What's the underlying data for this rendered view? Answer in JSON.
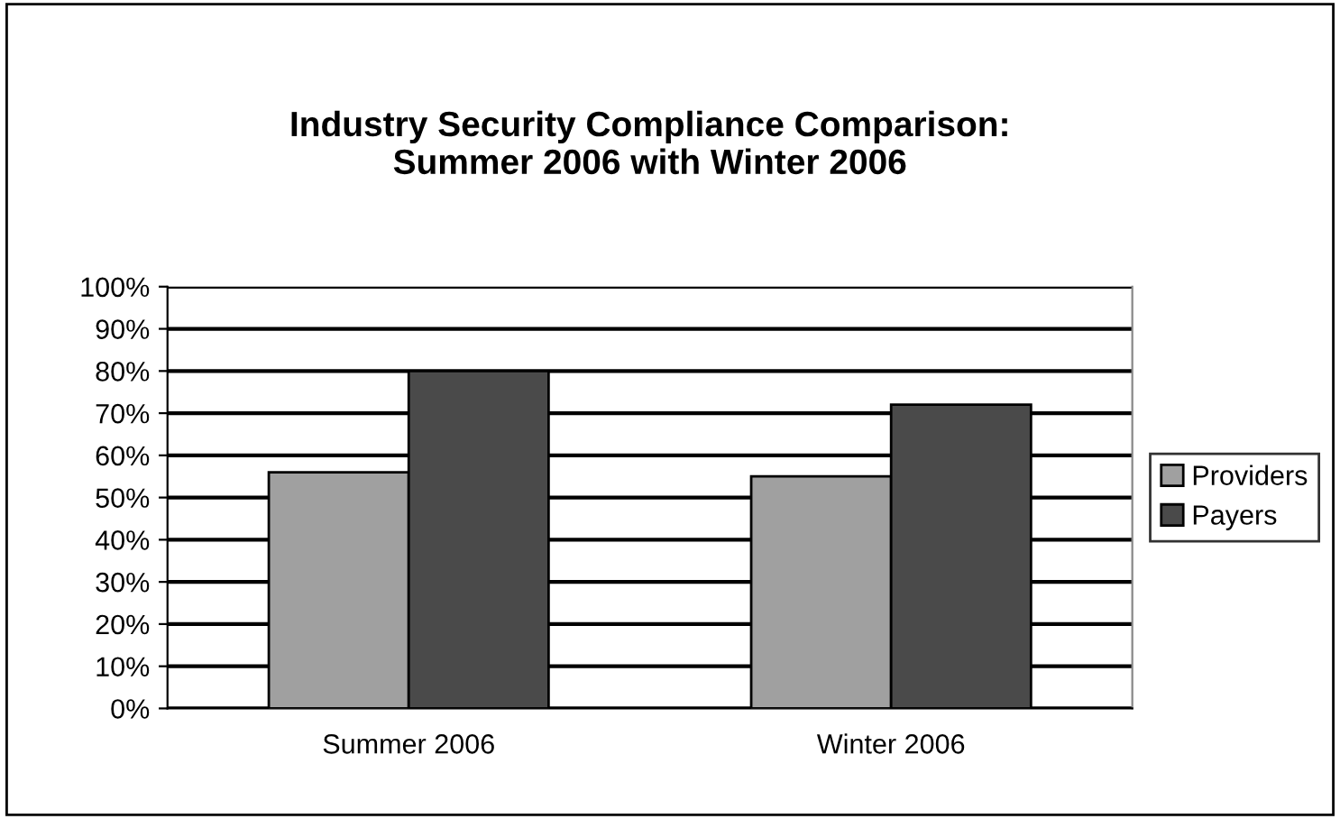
{
  "chart_data": {
    "type": "bar",
    "title": "Industry Security Compliance Comparison:\nSummer 2006 with Winter 2006",
    "categories": [
      "Summer 2006",
      "Winter 2006"
    ],
    "series": [
      {
        "name": "Providers",
        "color": "#a0a0a0",
        "values": [
          56,
          55
        ]
      },
      {
        "name": "Payers",
        "color": "#4a4a4a",
        "values": [
          80,
          72
        ]
      }
    ],
    "ylim": [
      0,
      100
    ],
    "yticks": [
      {
        "value": 0,
        "label": "0%"
      },
      {
        "value": 10,
        "label": "10%"
      },
      {
        "value": 20,
        "label": "20%"
      },
      {
        "value": 30,
        "label": "30%"
      },
      {
        "value": 40,
        "label": "40%"
      },
      {
        "value": 50,
        "label": "50%"
      },
      {
        "value": 60,
        "label": "60%"
      },
      {
        "value": 70,
        "label": "70%"
      },
      {
        "value": 80,
        "label": "80%"
      },
      {
        "value": 90,
        "label": "90%"
      },
      {
        "value": 100,
        "label": "100%"
      }
    ],
    "grid": "y",
    "legend": "right"
  }
}
